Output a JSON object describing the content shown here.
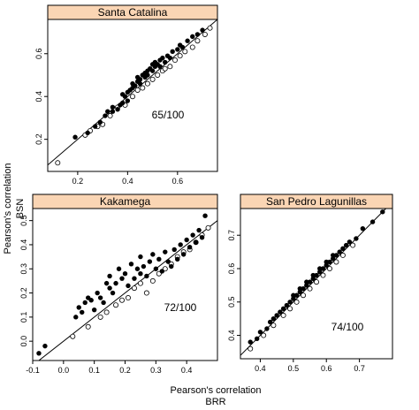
{
  "chart_data": [
    {
      "type": "scatter",
      "title": "Santa Catalina",
      "ratio_label": "65/100",
      "xlim": [
        0.08,
        0.76
      ],
      "ylim": [
        0.05,
        0.76
      ],
      "xticks": [
        0.2,
        0.4,
        0.6
      ],
      "yticks": [
        0.2,
        0.4,
        0.6
      ],
      "reference_line": "y = x",
      "filled_points": [
        [
          0.19,
          0.21
        ],
        [
          0.24,
          0.23
        ],
        [
          0.27,
          0.26
        ],
        [
          0.29,
          0.28
        ],
        [
          0.31,
          0.31
        ],
        [
          0.32,
          0.33
        ],
        [
          0.34,
          0.33
        ],
        [
          0.34,
          0.35
        ],
        [
          0.36,
          0.34
        ],
        [
          0.37,
          0.36
        ],
        [
          0.38,
          0.37
        ],
        [
          0.38,
          0.41
        ],
        [
          0.39,
          0.4
        ],
        [
          0.4,
          0.38
        ],
        [
          0.4,
          0.42
        ],
        [
          0.41,
          0.43
        ],
        [
          0.42,
          0.44
        ],
        [
          0.42,
          0.46
        ],
        [
          0.43,
          0.45
        ],
        [
          0.44,
          0.47
        ],
        [
          0.44,
          0.49
        ],
        [
          0.45,
          0.46
        ],
        [
          0.45,
          0.48
        ],
        [
          0.46,
          0.5
        ],
        [
          0.47,
          0.49
        ],
        [
          0.47,
          0.51
        ],
        [
          0.48,
          0.52
        ],
        [
          0.48,
          0.5
        ],
        [
          0.49,
          0.53
        ],
        [
          0.5,
          0.52
        ],
        [
          0.5,
          0.55
        ],
        [
          0.51,
          0.54
        ],
        [
          0.51,
          0.56
        ],
        [
          0.52,
          0.55
        ],
        [
          0.53,
          0.57
        ],
        [
          0.53,
          0.54
        ],
        [
          0.54,
          0.58
        ],
        [
          0.55,
          0.56
        ],
        [
          0.56,
          0.59
        ],
        [
          0.57,
          0.58
        ],
        [
          0.58,
          0.61
        ],
        [
          0.6,
          0.62
        ],
        [
          0.61,
          0.64
        ],
        [
          0.62,
          0.63
        ],
        [
          0.64,
          0.66
        ],
        [
          0.66,
          0.68
        ],
        [
          0.68,
          0.69
        ],
        [
          0.7,
          0.71
        ]
      ],
      "open_points": [
        [
          0.12,
          0.09
        ],
        [
          0.23,
          0.22
        ],
        [
          0.25,
          0.24
        ],
        [
          0.28,
          0.26
        ],
        [
          0.3,
          0.27
        ],
        [
          0.33,
          0.31
        ],
        [
          0.36,
          0.35
        ],
        [
          0.39,
          0.36
        ],
        [
          0.42,
          0.4
        ],
        [
          0.44,
          0.43
        ],
        [
          0.46,
          0.44
        ],
        [
          0.48,
          0.46
        ],
        [
          0.5,
          0.48
        ],
        [
          0.52,
          0.5
        ],
        [
          0.54,
          0.52
        ],
        [
          0.55,
          0.53
        ],
        [
          0.57,
          0.54
        ],
        [
          0.59,
          0.57
        ],
        [
          0.61,
          0.59
        ],
        [
          0.63,
          0.61
        ],
        [
          0.66,
          0.63
        ],
        [
          0.68,
          0.66
        ],
        [
          0.71,
          0.69
        ],
        [
          0.73,
          0.72
        ]
      ]
    },
    {
      "type": "scatter",
      "title": "Kakamega",
      "ratio_label": "72/100",
      "xlim": [
        -0.1,
        0.5
      ],
      "ylim": [
        -0.08,
        0.55
      ],
      "xticks": [
        -0.1,
        0.0,
        0.1,
        0.2,
        0.3,
        0.4
      ],
      "yticks": [
        0.0,
        0.1,
        0.2,
        0.3,
        0.4,
        0.5
      ],
      "reference_line": "y = x",
      "filled_points": [
        [
          -0.08,
          -0.05
        ],
        [
          -0.06,
          -0.02
        ],
        [
          0.04,
          0.1
        ],
        [
          0.05,
          0.14
        ],
        [
          0.06,
          0.12
        ],
        [
          0.07,
          0.16
        ],
        [
          0.08,
          0.18
        ],
        [
          0.09,
          0.17
        ],
        [
          0.1,
          0.13
        ],
        [
          0.11,
          0.2
        ],
        [
          0.12,
          0.18
        ],
        [
          0.13,
          0.16
        ],
        [
          0.14,
          0.24
        ],
        [
          0.15,
          0.22
        ],
        [
          0.15,
          0.27
        ],
        [
          0.16,
          0.2
        ],
        [
          0.17,
          0.24
        ],
        [
          0.18,
          0.3
        ],
        [
          0.19,
          0.26
        ],
        [
          0.2,
          0.28
        ],
        [
          0.21,
          0.23
        ],
        [
          0.22,
          0.32
        ],
        [
          0.23,
          0.26
        ],
        [
          0.24,
          0.3
        ],
        [
          0.25,
          0.28
        ],
        [
          0.25,
          0.35
        ],
        [
          0.26,
          0.31
        ],
        [
          0.27,
          0.27
        ],
        [
          0.28,
          0.33
        ],
        [
          0.29,
          0.36
        ],
        [
          0.3,
          0.3
        ],
        [
          0.31,
          0.34
        ],
        [
          0.32,
          0.29
        ],
        [
          0.33,
          0.37
        ],
        [
          0.34,
          0.33
        ],
        [
          0.35,
          0.31
        ],
        [
          0.36,
          0.38
        ],
        [
          0.37,
          0.34
        ],
        [
          0.38,
          0.4
        ],
        [
          0.39,
          0.36
        ],
        [
          0.4,
          0.42
        ],
        [
          0.41,
          0.39
        ],
        [
          0.42,
          0.44
        ],
        [
          0.43,
          0.41
        ],
        [
          0.44,
          0.46
        ],
        [
          0.45,
          0.43
        ],
        [
          0.46,
          0.52
        ]
      ],
      "open_points": [
        [
          0.03,
          0.02
        ],
        [
          0.08,
          0.06
        ],
        [
          0.12,
          0.1
        ],
        [
          0.14,
          0.12
        ],
        [
          0.17,
          0.15
        ],
        [
          0.19,
          0.17
        ],
        [
          0.21,
          0.18
        ],
        [
          0.23,
          0.22
        ],
        [
          0.25,
          0.24
        ],
        [
          0.27,
          0.2
        ],
        [
          0.29,
          0.25
        ],
        [
          0.31,
          0.28
        ],
        [
          0.33,
          0.3
        ],
        [
          0.35,
          0.32
        ],
        [
          0.37,
          0.35
        ],
        [
          0.39,
          0.37
        ],
        [
          0.41,
          0.38
        ],
        [
          0.43,
          0.41
        ],
        [
          0.45,
          0.44
        ],
        [
          0.47,
          0.47
        ]
      ]
    },
    {
      "type": "scatter",
      "title": "San Pedro Lagunillas",
      "ratio_label": "74/100",
      "xlim": [
        0.34,
        0.8
      ],
      "ylim": [
        0.33,
        0.78
      ],
      "xticks": [
        0.4,
        0.5,
        0.6,
        0.7
      ],
      "yticks": [
        0.4,
        0.5,
        0.6,
        0.7
      ],
      "reference_line": "y = x",
      "filled_points": [
        [
          0.37,
          0.38
        ],
        [
          0.39,
          0.39
        ],
        [
          0.4,
          0.41
        ],
        [
          0.42,
          0.42
        ],
        [
          0.43,
          0.44
        ],
        [
          0.44,
          0.45
        ],
        [
          0.45,
          0.46
        ],
        [
          0.46,
          0.47
        ],
        [
          0.47,
          0.48
        ],
        [
          0.48,
          0.49
        ],
        [
          0.49,
          0.5
        ],
        [
          0.5,
          0.51
        ],
        [
          0.5,
          0.52
        ],
        [
          0.51,
          0.52
        ],
        [
          0.52,
          0.53
        ],
        [
          0.52,
          0.54
        ],
        [
          0.53,
          0.54
        ],
        [
          0.54,
          0.55
        ],
        [
          0.54,
          0.56
        ],
        [
          0.55,
          0.56
        ],
        [
          0.56,
          0.57
        ],
        [
          0.56,
          0.58
        ],
        [
          0.57,
          0.58
        ],
        [
          0.58,
          0.59
        ],
        [
          0.58,
          0.6
        ],
        [
          0.59,
          0.6
        ],
        [
          0.6,
          0.61
        ],
        [
          0.6,
          0.62
        ],
        [
          0.61,
          0.62
        ],
        [
          0.62,
          0.63
        ],
        [
          0.62,
          0.64
        ],
        [
          0.63,
          0.64
        ],
        [
          0.64,
          0.65
        ],
        [
          0.65,
          0.66
        ],
        [
          0.66,
          0.67
        ],
        [
          0.67,
          0.68
        ],
        [
          0.69,
          0.69
        ],
        [
          0.71,
          0.72
        ],
        [
          0.74,
          0.74
        ],
        [
          0.77,
          0.77
        ]
      ],
      "open_points": [
        [
          0.37,
          0.36
        ],
        [
          0.41,
          0.4
        ],
        [
          0.44,
          0.43
        ],
        [
          0.47,
          0.46
        ],
        [
          0.49,
          0.48
        ],
        [
          0.51,
          0.5
        ],
        [
          0.53,
          0.52
        ],
        [
          0.55,
          0.54
        ],
        [
          0.57,
          0.56
        ],
        [
          0.59,
          0.58
        ],
        [
          0.61,
          0.6
        ],
        [
          0.63,
          0.62
        ],
        [
          0.65,
          0.64
        ],
        [
          0.68,
          0.67
        ]
      ]
    }
  ],
  "labels": {
    "y_title_line1": "Pearson's correlation",
    "y_title_line2": "BSN",
    "x_title_line1": "Pearson's correlation",
    "x_title_line2": "BRR"
  },
  "colors": {
    "strip_fill": "#fad5b4",
    "strip_border": "#000000",
    "points": "#000000",
    "line": "#000000"
  }
}
